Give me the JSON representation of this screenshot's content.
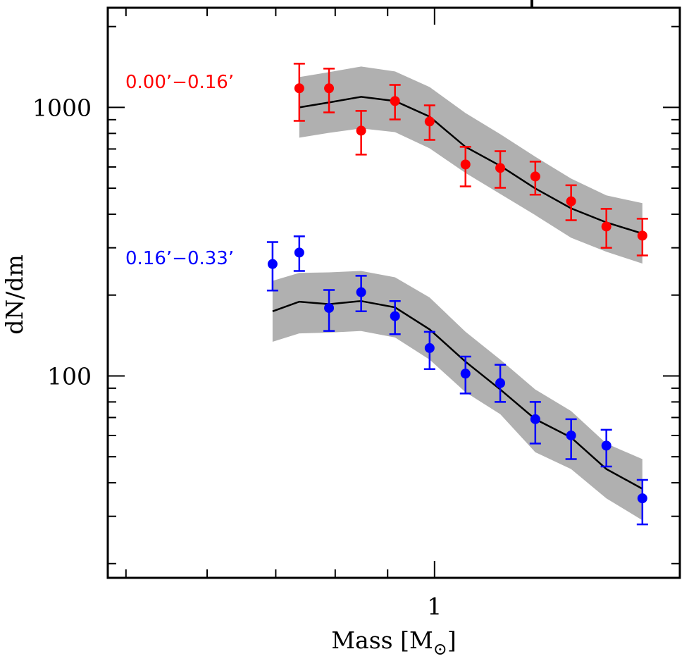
{
  "chart_data": {
    "type": "scatter",
    "title": "",
    "xlabel": "Mass [M⊙]",
    "xlabel_text": "Mass [M",
    "xlabel_sub": "⊙",
    "xlabel_close": "]",
    "ylabel": "dN/dm",
    "xscale": "log",
    "yscale": "log",
    "xlim": [
      0.48,
      1.735
    ],
    "ylim": [
      17.7,
      2350
    ],
    "x_major_ticks": [
      {
        "value": 1,
        "label": "1"
      }
    ],
    "x_minor_ticks": [
      0.5,
      0.6,
      0.7,
      0.8,
      0.9
    ],
    "y_major_ticks": [
      {
        "value": 100,
        "label": "100"
      },
      {
        "value": 1000,
        "label": "1000"
      }
    ],
    "y_minor_ticks": [
      20,
      30,
      40,
      50,
      60,
      70,
      80,
      90,
      200,
      300,
      400,
      500,
      600,
      700,
      800,
      900,
      2000
    ],
    "grid": false,
    "band_color": "#b0b0b0",
    "model_line_color": "#000000",
    "series": [
      {
        "name": "0.00’−0.16’",
        "color": "#ff0000",
        "label_position": "upper-left",
        "points": [
          {
            "x": 0.738,
            "y": 1178,
            "ylo": 891,
            "yhi": 1455
          },
          {
            "x": 0.789,
            "y": 1178,
            "ylo": 958,
            "yhi": 1394
          },
          {
            "x": 0.848,
            "y": 819,
            "ylo": 667,
            "yhi": 970
          },
          {
            "x": 0.915,
            "y": 1056,
            "ylo": 902,
            "yhi": 1213
          },
          {
            "x": 0.989,
            "y": 886,
            "ylo": 757,
            "yhi": 1018
          },
          {
            "x": 1.072,
            "y": 613,
            "ylo": 508,
            "yhi": 713
          },
          {
            "x": 1.159,
            "y": 595,
            "ylo": 502,
            "yhi": 687
          },
          {
            "x": 1.254,
            "y": 553,
            "ylo": 473,
            "yhi": 628
          },
          {
            "x": 1.359,
            "y": 447,
            "ylo": 380,
            "yhi": 513
          },
          {
            "x": 1.471,
            "y": 360,
            "ylo": 300,
            "yhi": 419
          },
          {
            "x": 1.595,
            "y": 333,
            "ylo": 281,
            "yhi": 385
          }
        ],
        "model": {
          "x": [
            0.738,
            0.789,
            0.848,
            0.915,
            0.989,
            1.072,
            1.159,
            1.254,
            1.359,
            1.471,
            1.595
          ],
          "y": [
            1000,
            1043,
            1095,
            1056,
            924,
            713,
            606,
            499,
            421,
            373,
            339
          ],
          "band_hi": [
            1297,
            1353,
            1420,
            1361,
            1191,
            953,
            795,
            655,
            543,
            470,
            440
          ],
          "band_lo": [
            771,
            804,
            835,
            809,
            704,
            570,
            476,
            397,
            327,
            290,
            262
          ]
        }
      },
      {
        "name": "0.16’−0.33’",
        "color": "#0000ff",
        "label_position": "middle-left",
        "points": [
          {
            "x": 0.695,
            "y": 261,
            "ylo": 208,
            "yhi": 315
          },
          {
            "x": 0.738,
            "y": 288,
            "ylo": 246,
            "yhi": 331
          },
          {
            "x": 0.789,
            "y": 179,
            "ylo": 147,
            "yhi": 209
          },
          {
            "x": 0.848,
            "y": 205,
            "ylo": 174,
            "yhi": 236
          },
          {
            "x": 0.915,
            "y": 167,
            "ylo": 143,
            "yhi": 190
          },
          {
            "x": 0.989,
            "y": 127,
            "ylo": 106,
            "yhi": 146
          },
          {
            "x": 1.072,
            "y": 102,
            "ylo": 86,
            "yhi": 118
          },
          {
            "x": 1.159,
            "y": 94,
            "ylo": 80,
            "yhi": 110
          },
          {
            "x": 1.254,
            "y": 69,
            "ylo": 56,
            "yhi": 80
          },
          {
            "x": 1.359,
            "y": 60,
            "ylo": 49,
            "yhi": 69
          },
          {
            "x": 1.471,
            "y": 55,
            "ylo": 46,
            "yhi": 63
          },
          {
            "x": 1.595,
            "y": 35,
            "ylo": 28,
            "yhi": 41
          }
        ],
        "model": {
          "x": [
            0.695,
            0.738,
            0.789,
            0.848,
            0.915,
            0.989,
            1.072,
            1.159,
            1.254,
            1.359,
            1.471,
            1.595
          ],
          "y": [
            174,
            189,
            185,
            190,
            180,
            149,
            113,
            89,
            69,
            59,
            45,
            38
          ],
          "band_hi": [
            226,
            242,
            243,
            246,
            233,
            196,
            146,
            115,
            89,
            74,
            56,
            49
          ],
          "band_lo": [
            134,
            144,
            145,
            147,
            139,
            115,
            87,
            72,
            52,
            45,
            35,
            29
          ]
        }
      }
    ]
  }
}
